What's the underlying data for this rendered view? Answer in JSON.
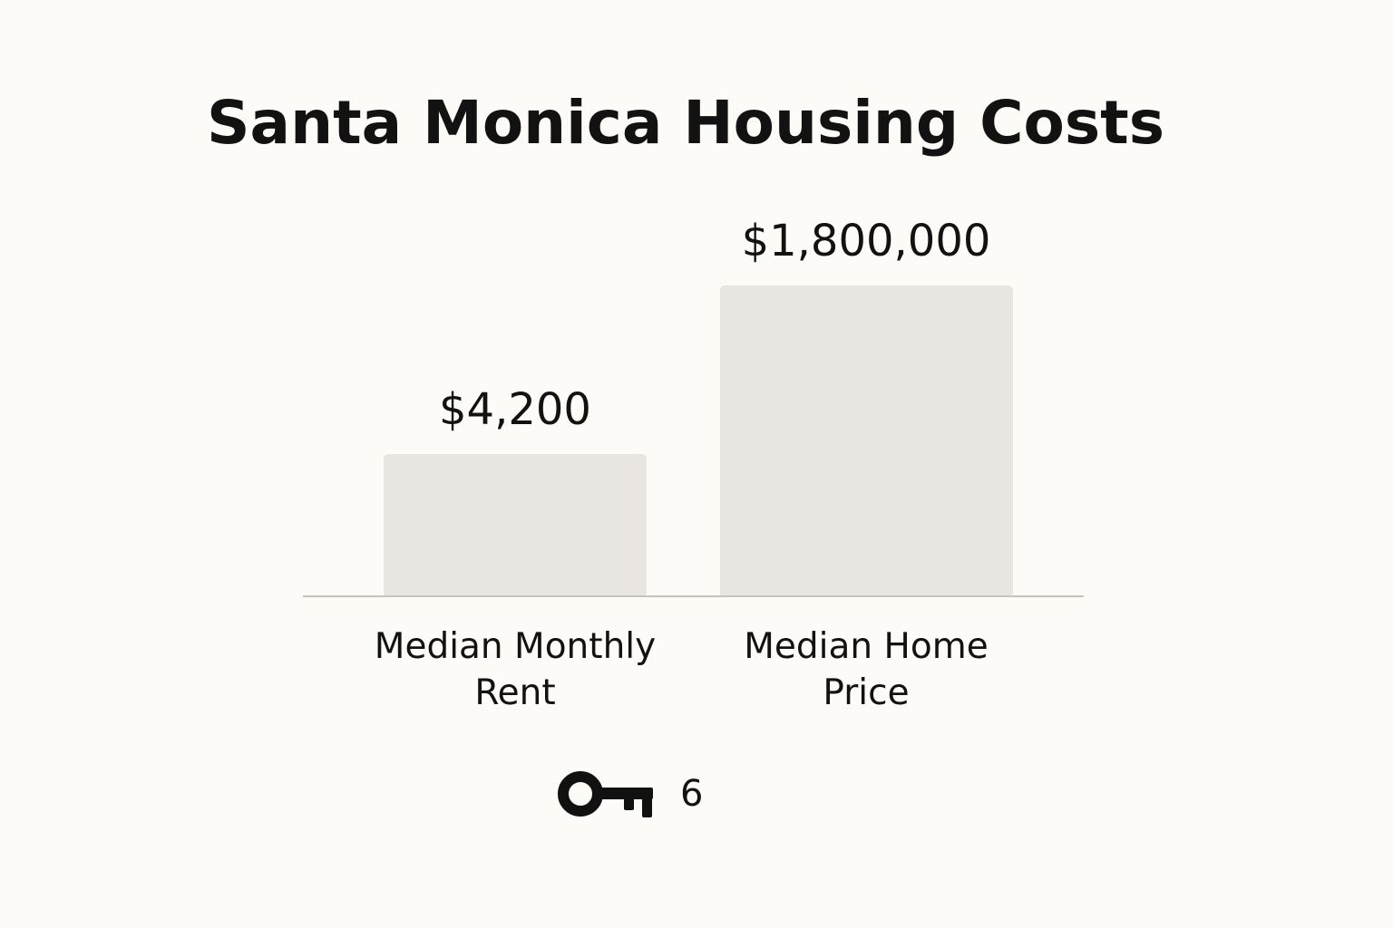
{
  "chart_data": {
    "type": "bar",
    "title": "Santa Monica Housing Costs",
    "categories": [
      [
        "Median Monthly",
        "Rent"
      ],
      [
        "Median Home",
        "Price"
      ]
    ],
    "values": [
      4200,
      1800000
    ],
    "data_labels": [
      "$4,200",
      "$1,800,000"
    ],
    "bar_color": "#e9e5e0",
    "baseline_color": "#c8c2bd",
    "text_color": "#121212",
    "legend": {
      "icon": "key-icon",
      "label": "6"
    }
  }
}
